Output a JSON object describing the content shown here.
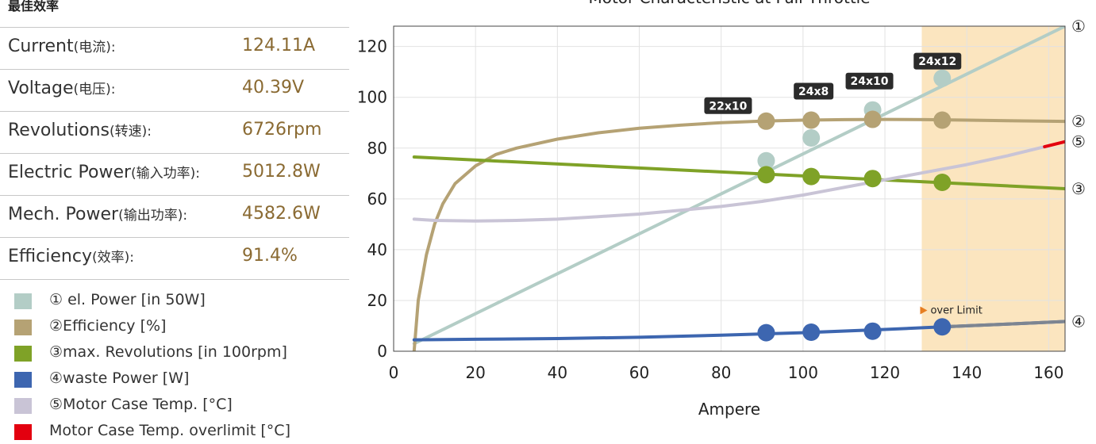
{
  "panel": {
    "title": "最佳效率",
    "stats": [
      {
        "label": "Current",
        "label_cn": "(电流):",
        "value": "124.11A"
      },
      {
        "label": "Voltage",
        "label_cn": "(电压):",
        "value": "40.39V"
      },
      {
        "label": "Revolutions",
        "label_cn": "(转速):",
        "value": "6726rpm"
      },
      {
        "label": "Electric Power",
        "label_cn": "(输入功率):",
        "value": "5012.8W"
      },
      {
        "label": "Mech. Power",
        "label_cn": "(输出功率):",
        "value": "4582.6W"
      },
      {
        "label": "Efficiency",
        "label_cn": "(效率):",
        "value": "91.4%"
      }
    ]
  },
  "legend": [
    {
      "label": "① el. Power [in 50W]",
      "color": "#b3cdc6"
    },
    {
      "label": "②Efficiency [%]",
      "color": "#b5a274"
    },
    {
      "label": "③max. Revolutions [in 100rpm]",
      "color": "#7fa227"
    },
    {
      "label": "④waste Power [W]",
      "color": "#3d66b0"
    },
    {
      "label": "⑤Motor Case Temp. [°C]",
      "color": "#c9c4d6"
    },
    {
      "label": "Motor Case Temp. overlimit [°C]",
      "color": "#e3000f"
    }
  ],
  "chart_data": {
    "type": "line",
    "title": "Motor Characteristic at Full Throttle",
    "xlabel": "Ampere",
    "ylabel": "",
    "xlim": [
      0,
      164
    ],
    "ylim": [
      0,
      128
    ],
    "xticks": [
      0,
      20,
      40,
      60,
      80,
      100,
      120,
      140,
      160
    ],
    "yticks": [
      0,
      20,
      40,
      60,
      80,
      100,
      120
    ],
    "grid": true,
    "over_limit": {
      "label": "over Limit",
      "x_start": 129,
      "x_end": 164,
      "color": "#fbe5bf"
    },
    "series": [
      {
        "key": "el_power",
        "end_label": "①",
        "color": "#b3cdc6",
        "x": [
          5,
          164
        ],
        "y": [
          3,
          128
        ]
      },
      {
        "key": "efficiency",
        "end_label": "②",
        "color": "#b5a274",
        "x": [
          5,
          6,
          8,
          10,
          12,
          15,
          20,
          25,
          30,
          40,
          50,
          60,
          70,
          80,
          90,
          100,
          110,
          120,
          130,
          140,
          150,
          164
        ],
        "y": [
          0,
          20,
          38,
          50,
          58,
          66,
          73,
          77.5,
          80,
          83.5,
          86,
          87.8,
          89,
          90,
          90.6,
          91,
          91.2,
          91.3,
          91.2,
          91,
          90.8,
          90.5
        ]
      },
      {
        "key": "max_revolutions",
        "end_label": "③",
        "color": "#7fa227",
        "x": [
          5,
          164
        ],
        "y": [
          76.5,
          64
        ]
      },
      {
        "key": "waste_power",
        "end_label": "④",
        "color": "#3d66b0",
        "x": [
          5,
          20,
          40,
          60,
          80,
          100,
          120,
          134,
          150,
          164
        ],
        "y": [
          4.5,
          4.7,
          5,
          5.5,
          6.3,
          7.3,
          8.6,
          9.6,
          10.7,
          11.7
        ]
      },
      {
        "key": "motor_case_temp",
        "end_label": "⑤",
        "color": "#c9c4d6",
        "x": [
          5,
          10,
          20,
          30,
          40,
          50,
          60,
          70,
          80,
          90,
          100,
          110,
          120,
          130,
          140,
          150,
          159
        ],
        "y": [
          52,
          51.5,
          51.3,
          51.5,
          52,
          53,
          54,
          55.5,
          57,
          59,
          61.5,
          64.5,
          67.5,
          70.5,
          73.5,
          77,
          80.5
        ]
      },
      {
        "key": "motor_case_temp_overlimit",
        "end_label": "",
        "color": "#e3000f",
        "x": [
          159,
          164
        ],
        "y": [
          80.5,
          82.5
        ]
      }
    ],
    "props": [
      {
        "label": "22x10",
        "x": 91,
        "el_power": 75,
        "efficiency": 90.6,
        "max_revolutions": 69.5,
        "waste_power": 7.3
      },
      {
        "label": "24x8",
        "x": 102,
        "el_power": 84,
        "efficiency": 91,
        "max_revolutions": 68.8,
        "waste_power": 7.5
      },
      {
        "label": "24x10",
        "x": 117,
        "el_power": 95,
        "efficiency": 91.3,
        "max_revolutions": 68,
        "waste_power": 7.9
      },
      {
        "label": "24x12",
        "x": 134,
        "el_power": 107.5,
        "efficiency": 91,
        "max_revolutions": 66.5,
        "waste_power": 9.6
      }
    ]
  }
}
